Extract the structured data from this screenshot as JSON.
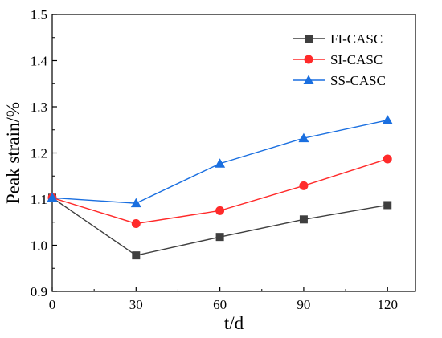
{
  "chart_data": {
    "type": "line",
    "title": "",
    "xlabel": "t/d",
    "ylabel": "Peak strain/%",
    "x": [
      0,
      30,
      60,
      90,
      120
    ],
    "xlim": [
      0,
      130
    ],
    "ylim": [
      0.9,
      1.5
    ],
    "xticks": [
      "0",
      "30",
      "60",
      "90",
      "120"
    ],
    "yticks": [
      "0.9",
      "1.0",
      "1.1",
      "1.2",
      "1.3",
      "1.4",
      "1.5"
    ],
    "grid": false,
    "legend_position": "top-right",
    "series": [
      {
        "name": "FI-CASC",
        "values": [
          1.103,
          0.978,
          1.018,
          1.056,
          1.087
        ],
        "color": "#3f3f3f",
        "marker": "square"
      },
      {
        "name": "SI-CASC",
        "values": [
          1.103,
          1.047,
          1.075,
          1.129,
          1.187
        ],
        "color": "#ff2a2a",
        "marker": "circle"
      },
      {
        "name": "SS-CASC",
        "values": [
          1.103,
          1.091,
          1.177,
          1.232,
          1.271
        ],
        "color": "#1a6fe0",
        "marker": "triangle"
      }
    ]
  }
}
